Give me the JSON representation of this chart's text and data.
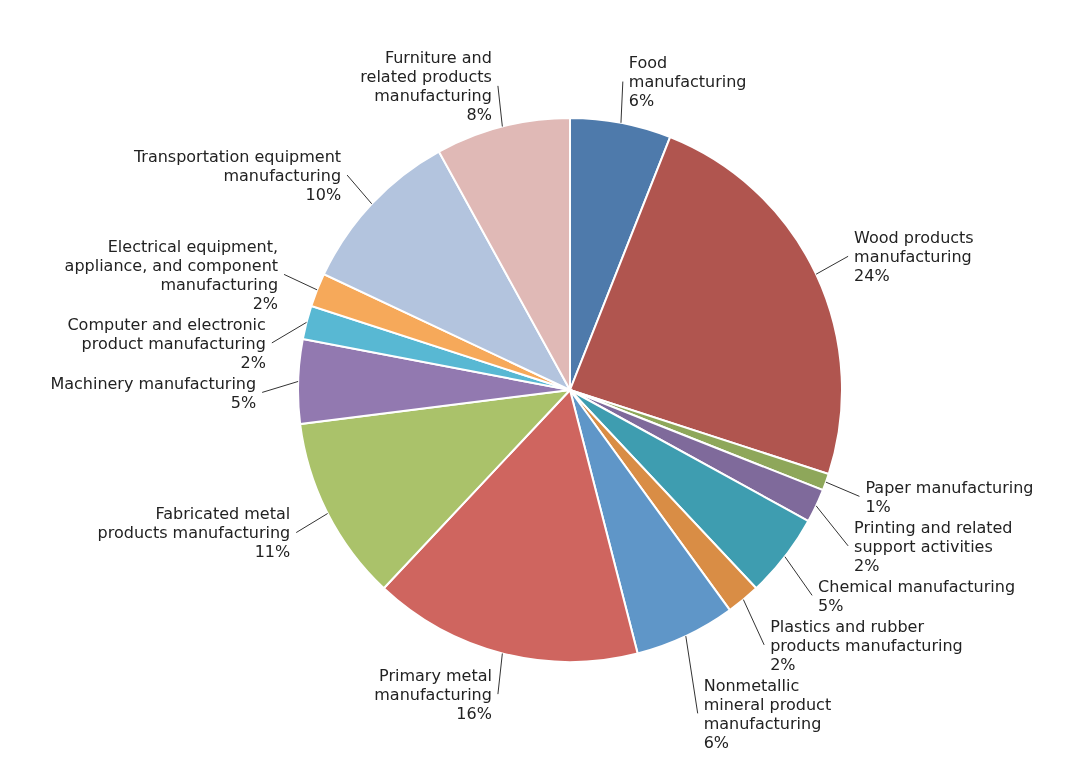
{
  "chart_data": {
    "type": "pie",
    "categories": [
      "Food manufacturing",
      "Wood products manufacturing",
      "Paper manufacturing",
      "Printing and related support activities",
      "Chemical manufacturing",
      "Plastics and rubber products manufacturing",
      "Nonmetallic mineral product manufacturing",
      "Primary metal manufacturing",
      "Fabricated metal products manufacturing",
      "Machinery manufacturing",
      "Computer and electronic product manufacturing",
      "Electrical equipment, appliance, and component manufacturing",
      "Transportation equipment manufacturing",
      "Furniture and related products manufacturing"
    ],
    "values": [
      6,
      24,
      1,
      2,
      5,
      2,
      6,
      16,
      11,
      5,
      2,
      2,
      10,
      8
    ],
    "colors": [
      "#4e7aab",
      "#b0554f",
      "#8ea75a",
      "#7f6a9b",
      "#3e9db0",
      "#d98d45",
      "#5f96c8",
      "#cf655f",
      "#aac26a",
      "#9279b0",
      "#58b8d3",
      "#f6a95a",
      "#b3c4de",
      "#e0b9b6"
    ],
    "value_labels": [
      "6%",
      "24%",
      "1%",
      "2%",
      "5%",
      "2%",
      "6%",
      "16%",
      "11%",
      "5%",
      "2%",
      "2%",
      "10%",
      "8%"
    ]
  }
}
